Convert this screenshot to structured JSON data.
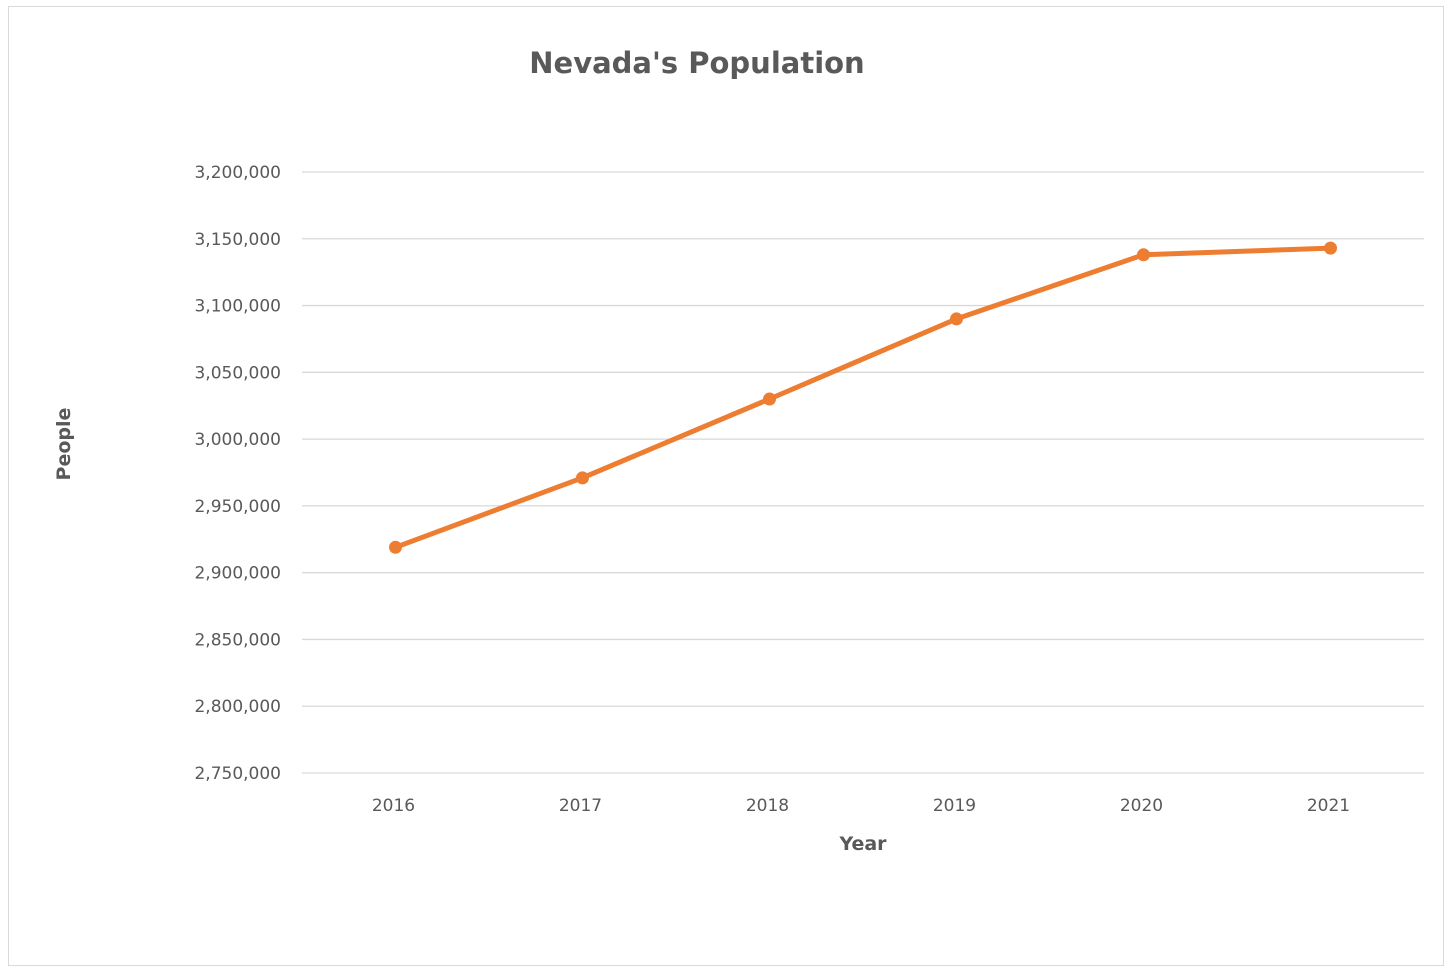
{
  "chart_data": {
    "type": "line",
    "title": "Nevada's Population",
    "xlabel": "Year",
    "ylabel": "People",
    "categories": [
      "2016",
      "2017",
      "2018",
      "2019",
      "2020",
      "2021"
    ],
    "series": [
      {
        "values": [
          2919000,
          2971000,
          3030000,
          3090000,
          3138000,
          3143000
        ],
        "color": "#ed7d31"
      }
    ],
    "ylim": [
      2750000,
      3200000
    ],
    "ytick_step": 50000,
    "yticks": [
      "2,750,000",
      "2,800,000",
      "2,850,000",
      "2,900,000",
      "2,950,000",
      "3,000,000",
      "3,050,000",
      "3,100,000",
      "3,150,000",
      "3,200,000"
    ],
    "grid": true,
    "markers": true,
    "legend": "none"
  }
}
